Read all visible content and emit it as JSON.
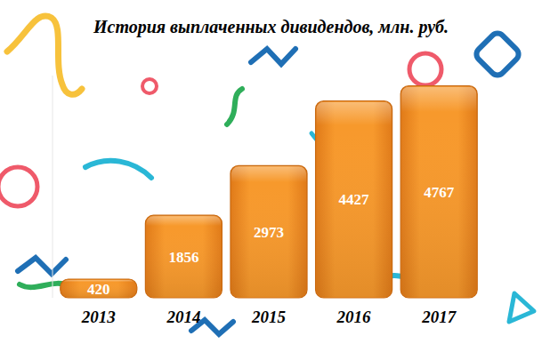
{
  "chart_data": {
    "type": "bar",
    "title": "История выплаченных дивидендов, млн. руб.",
    "categories": [
      "2013",
      "2014",
      "2015",
      "2016",
      "2017"
    ],
    "values": [
      420,
      1856,
      2973,
      4427,
      4767
    ],
    "color": "#f7992c",
    "ylim": [
      0,
      5000
    ],
    "grid": false,
    "data_labels": true,
    "tick_labels": "x"
  }
}
